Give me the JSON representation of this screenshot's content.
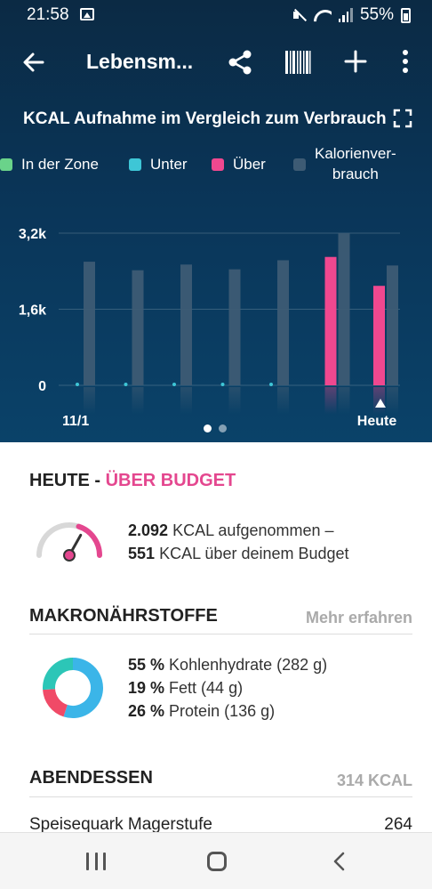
{
  "status_bar": {
    "time": "21:58",
    "battery": "55%"
  },
  "app_bar": {
    "title": "Lebensm...",
    "icons": [
      "back-arrow-icon",
      "share-icon",
      "barcode-icon",
      "plus-icon",
      "more-vert-icon"
    ]
  },
  "chart": {
    "title": "KCAL Aufnahme im Vergleich zum Verbrauch",
    "legend": [
      {
        "label": "In der Zone",
        "color": "#6ad38a"
      },
      {
        "label": "Unter",
        "color": "#3ec6d6"
      },
      {
        "label": "Über",
        "color": "#f0488f"
      },
      {
        "label": "Kalorienver-\nbrauch",
        "color": "#3d5b74"
      }
    ]
  },
  "chart_data": {
    "type": "bar",
    "categories": [
      "11/1",
      "",
      "",
      "",
      "",
      "",
      "Heute"
    ],
    "y_tick_labels": [
      "0",
      "1,6k",
      "3,2k"
    ],
    "ylim": [
      0,
      3200
    ],
    "series": [
      {
        "name": "Über",
        "values": [
          0,
          0,
          0,
          0,
          0,
          2700,
          2092
        ]
      },
      {
        "name": "Kalorienverbrauch",
        "values": [
          2600,
          2420,
          2540,
          2440,
          2630,
          3200,
          2520
        ]
      }
    ],
    "under_markers": [
      true,
      true,
      true,
      true,
      true,
      false,
      false
    ],
    "selected_index": 6
  },
  "pager": {
    "count": 2,
    "active": 0
  },
  "today": {
    "prefix": "HEUTE - ",
    "status": "ÜBER BUDGET",
    "intake_value": "2.092",
    "intake_text": "KCAL aufgenommen –",
    "over_value": "551",
    "over_text": "KCAL über deinem Budget",
    "gauge_level": 0.85
  },
  "macros": {
    "title": "MAKRONÄHRSTOFFE",
    "more_link": "Mehr erfahren",
    "items": [
      {
        "pct": "55 %",
        "label": "Kohlenhydrate (282 g)",
        "color": "#3bb5e8",
        "value": 55
      },
      {
        "pct": "19 %",
        "label": "Fett (44 g)",
        "color": "#f04a67",
        "value": 19
      },
      {
        "pct": "26 %",
        "label": "Protein (136 g)",
        "color": "#2cc6b7",
        "value": 26
      }
    ]
  },
  "dinner": {
    "title": "ABENDESSEN",
    "kcal": "314 KCAL",
    "first_item": {
      "name": "Speisequark Magerstufe",
      "kcal": "264"
    }
  }
}
